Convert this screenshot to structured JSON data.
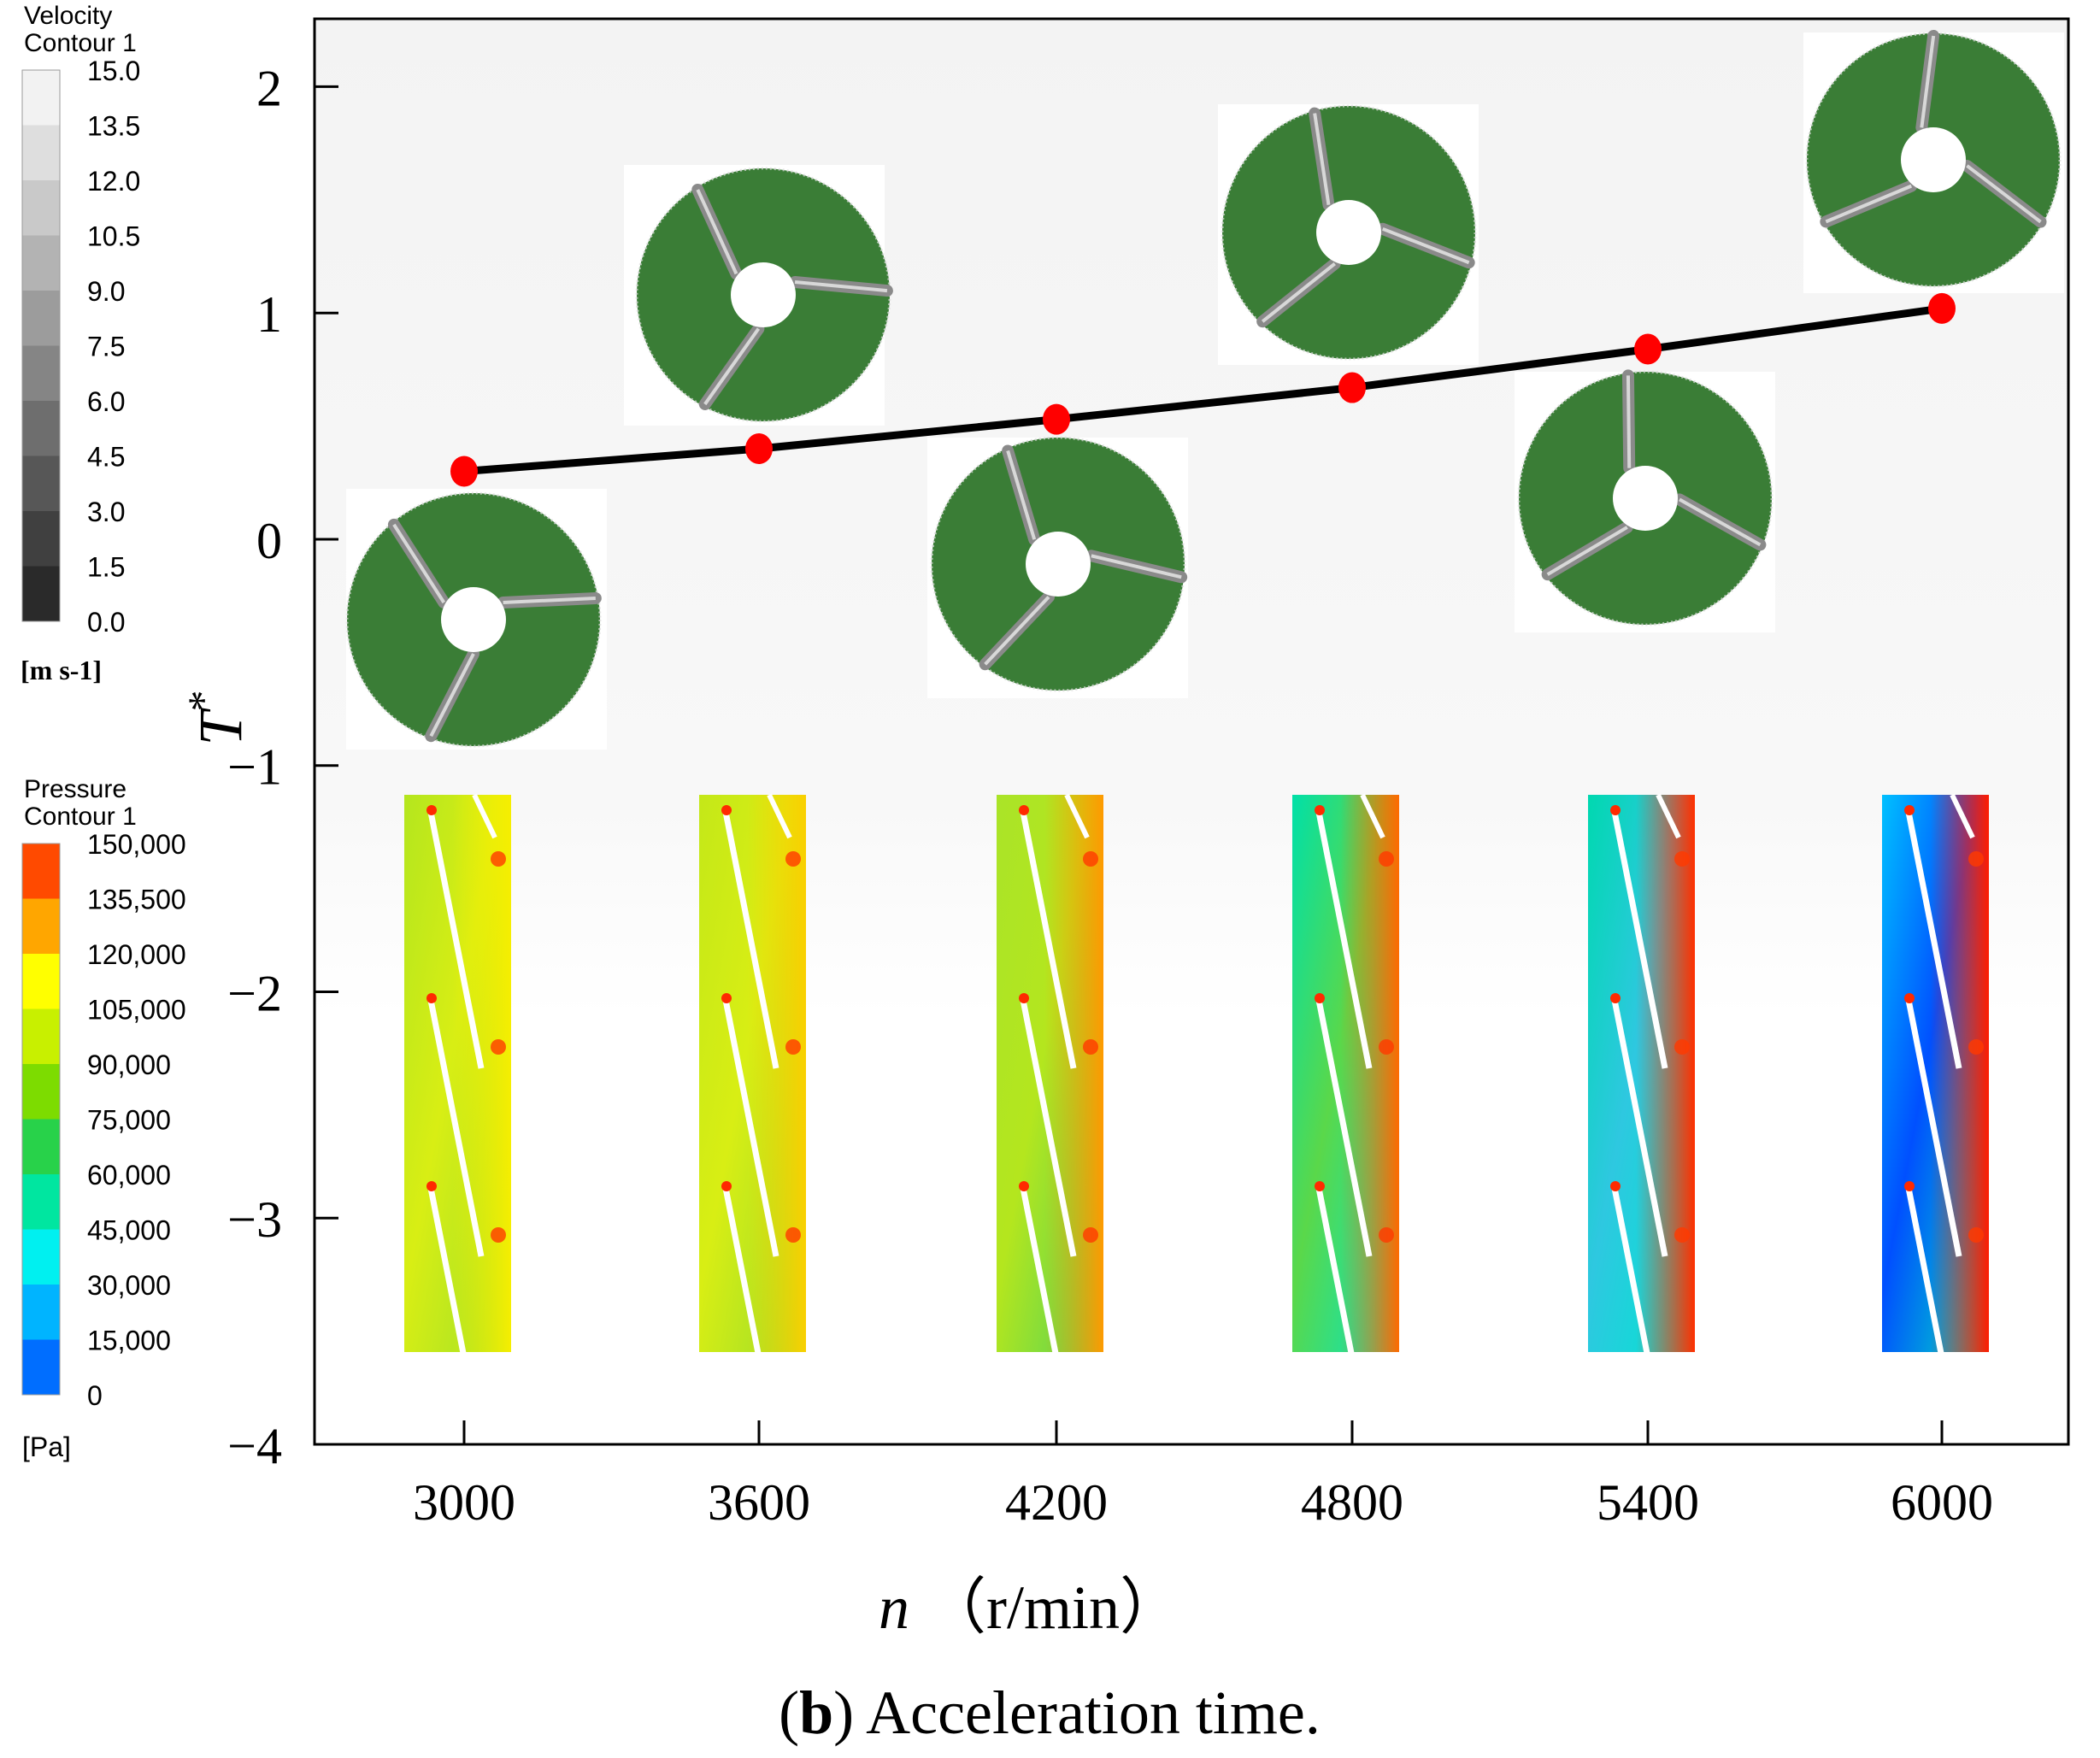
{
  "chart_data": {
    "type": "line",
    "title": "",
    "caption": {
      "letter": "b",
      "text": "Acceleration time."
    },
    "xlabel": {
      "symbol": "n",
      "unit": "（r/min）"
    },
    "ylabel": {
      "symbol": "T",
      "superscript": "*"
    },
    "ylim": [
      -4,
      2.3
    ],
    "yticks": [
      2,
      1,
      0,
      -1,
      -2,
      -3,
      -4
    ],
    "ytick_labels": [
      "2",
      "1",
      "0",
      "−1",
      "−2",
      "−3",
      "−4"
    ],
    "categories": [
      "3000",
      "3600",
      "4200",
      "4800",
      "5400",
      "6000"
    ],
    "series": [
      {
        "name": "T*",
        "values": [
          0.3,
          0.4,
          0.53,
          0.67,
          0.84,
          1.02
        ],
        "line_color": "#000000",
        "marker_color": "#ff0000"
      }
    ],
    "velocity_legend": {
      "title": [
        "Velocity",
        "Contour 1"
      ],
      "unit": "[m  s-1]",
      "levels": [
        "15.0",
        "13.5",
        "12.0",
        "10.5",
        "9.0",
        "7.5",
        "6.0",
        "4.5",
        "3.0",
        "1.5",
        "0.0"
      ],
      "colors": [
        "#f2f2f2",
        "#dedede",
        "#c9c9c9",
        "#b3b3b3",
        "#9c9c9c",
        "#858585",
        "#6e6e6e",
        "#575757",
        "#404040",
        "#2a2a2a",
        "#141414"
      ]
    },
    "pressure_legend": {
      "title": [
        "Pressure",
        "Contour 1"
      ],
      "unit": "[Pa]",
      "levels": [
        "150,000",
        "135,500",
        "120,000",
        "105,000",
        "90,000",
        "75,000",
        "60,000",
        "45,000",
        "30,000",
        "15,000",
        "0"
      ],
      "colors": [
        "#ff4a00",
        "#ffa600",
        "#ffff00",
        "#c8f000",
        "#7ddc00",
        "#28d24a",
        "#00e6a0",
        "#00f0f0",
        "#00b4ff",
        "#006eff",
        "#0028ff"
      ]
    },
    "impeller_color": "#3a7d36",
    "pressure_strip_colors": [
      {
        "top": "#b4e61e",
        "mid": "#d8ee14",
        "right": "#f6ee00",
        "bottom": "#9ce02a"
      },
      {
        "top": "#c4e818",
        "mid": "#d8ee14",
        "right": "#fad000",
        "bottom": "#96dc2c"
      },
      {
        "top": "#aae428",
        "mid": "#b4e61e",
        "right": "#ff9a00",
        "bottom": "#4ed25a"
      },
      {
        "top": "#00e0a8",
        "mid": "#5ad84a",
        "right": "#ff6a00",
        "bottom": "#00e6c8"
      },
      {
        "top": "#00d8b0",
        "mid": "#2ec8e0",
        "right": "#ff3000",
        "bottom": "#00e6d0"
      },
      {
        "top": "#00c0ff",
        "mid": "#0050ff",
        "right": "#ff1c00",
        "bottom": "#00e6c0"
      }
    ]
  }
}
